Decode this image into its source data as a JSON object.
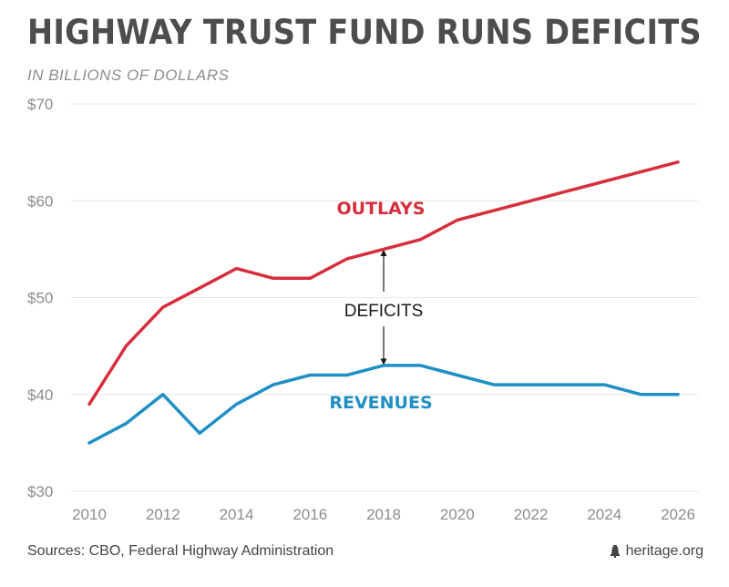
{
  "header": {
    "title": "HIGHWAY TRUST FUND RUNS DEFICITS",
    "subtitle": "IN BILLIONS OF DOLLARS"
  },
  "footer": {
    "sources": "Sources: CBO, Federal Highway Administration",
    "brand": "heritage.org",
    "brand_icon": "liberty-bell-icon"
  },
  "colors": {
    "outlays": "#d62e3c",
    "revenues": "#1f8fc4",
    "annotation": "#1a1a1a",
    "grid": "#e6e6e6"
  },
  "chart_data": {
    "type": "line",
    "title": "HIGHWAY TRUST FUND RUNS DEFICITS",
    "subtitle": "IN BILLIONS OF DOLLARS",
    "x": [
      2010,
      2011,
      2012,
      2013,
      2014,
      2015,
      2016,
      2017,
      2018,
      2019,
      2020,
      2021,
      2022,
      2023,
      2024,
      2025,
      2026
    ],
    "xticks": [
      2010,
      2012,
      2014,
      2016,
      2018,
      2020,
      2022,
      2024,
      2026
    ],
    "yticks": [
      {
        "value": 30,
        "label": "$30"
      },
      {
        "value": 40,
        "label": "$40"
      },
      {
        "value": 50,
        "label": "$50"
      },
      {
        "value": 60,
        "label": "$60"
      },
      {
        "value": 70,
        "label": "$70"
      }
    ],
    "xlim": [
      2010,
      2026
    ],
    "ylim": [
      30,
      70
    ],
    "grid": true,
    "series": [
      {
        "name": "OUTLAYS",
        "values": [
          39,
          45,
          49,
          51,
          53,
          52,
          52,
          54,
          55,
          56,
          58,
          59,
          60,
          61,
          62,
          63,
          64
        ]
      },
      {
        "name": "REVENUES",
        "values": [
          35,
          37,
          40,
          36,
          39,
          41,
          42,
          42,
          43,
          43,
          42,
          41,
          41,
          41,
          41,
          40,
          40
        ]
      }
    ],
    "annotations": [
      {
        "text": "DEFICITS",
        "x": 2018,
        "y": 49.5,
        "arrow_up_to": 55,
        "arrow_down_to": 43
      }
    ]
  }
}
